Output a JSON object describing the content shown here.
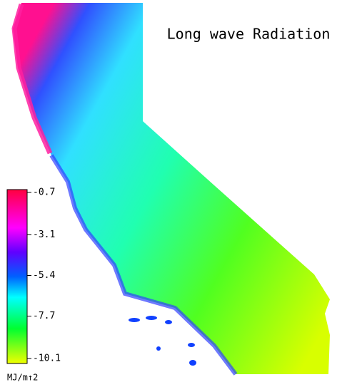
{
  "title": "Long wave Radiation",
  "legend": {
    "ticks": [
      -0.7,
      -3.1,
      -5.4,
      -7.7,
      -10.1
    ],
    "unit": "MJ/m↑2"
  }
}
